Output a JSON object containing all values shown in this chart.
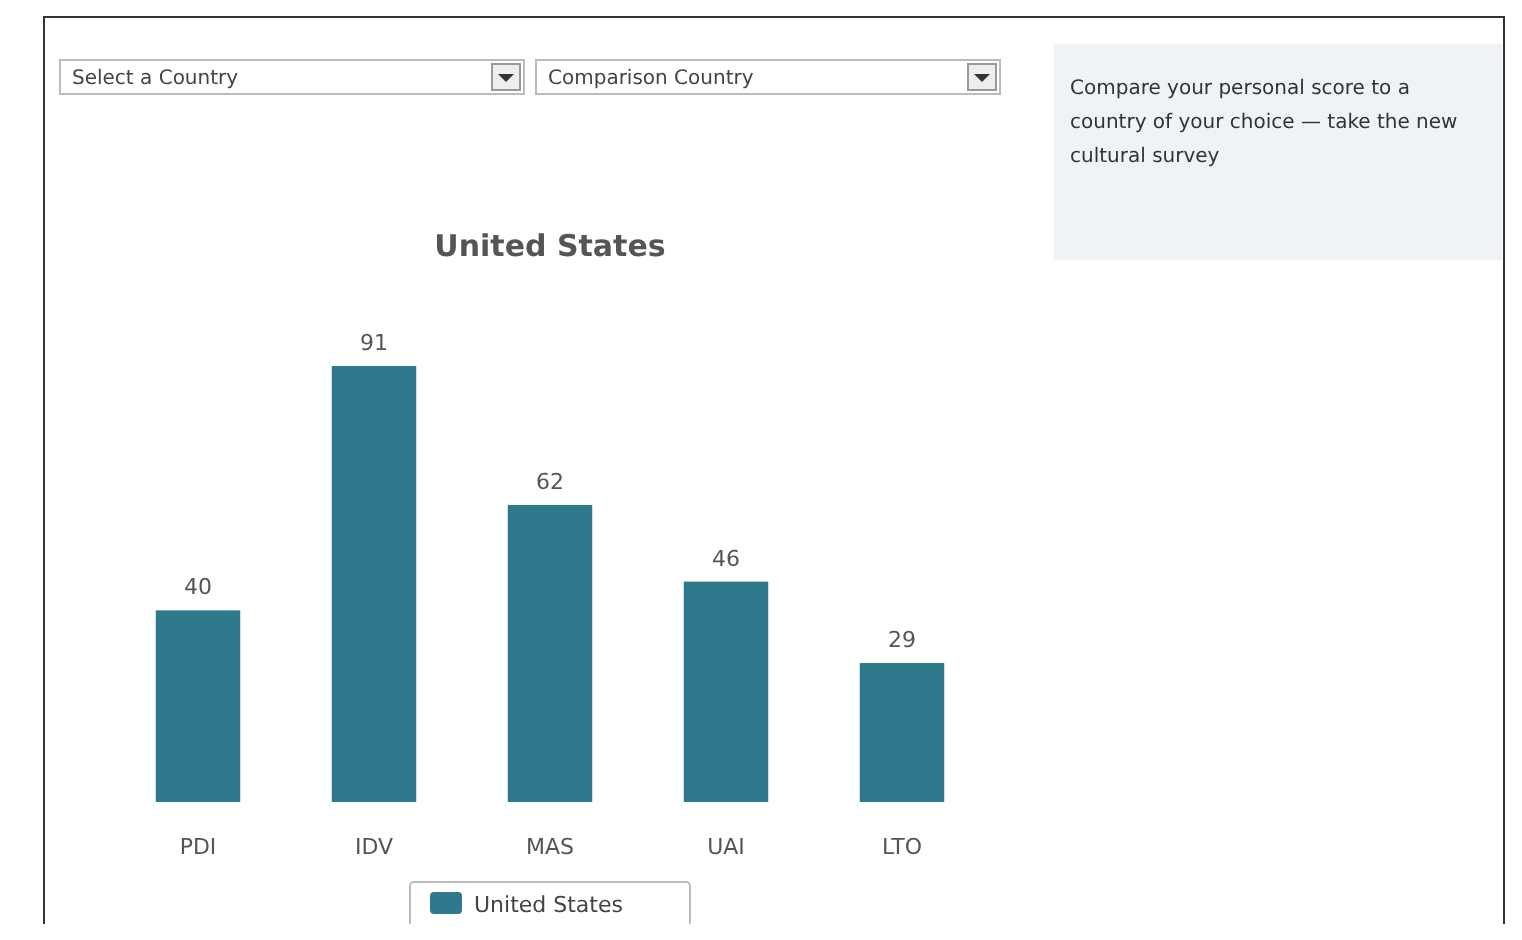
{
  "chart_data": {
    "type": "bar",
    "title": "United States",
    "categories": [
      "PDI",
      "IDV",
      "MAS",
      "UAI",
      "LTO"
    ],
    "series": [
      {
        "name": "United States",
        "color": "#2e7a8c",
        "values": [
          40,
          91,
          62,
          46,
          29
        ]
      }
    ],
    "data_labels": true,
    "legend": "bottom",
    "annotations": [
      "Select a Country",
      "Comparison Country",
      "Compare your personal score to a country of your choice — take the new cultural survey"
    ]
  }
}
